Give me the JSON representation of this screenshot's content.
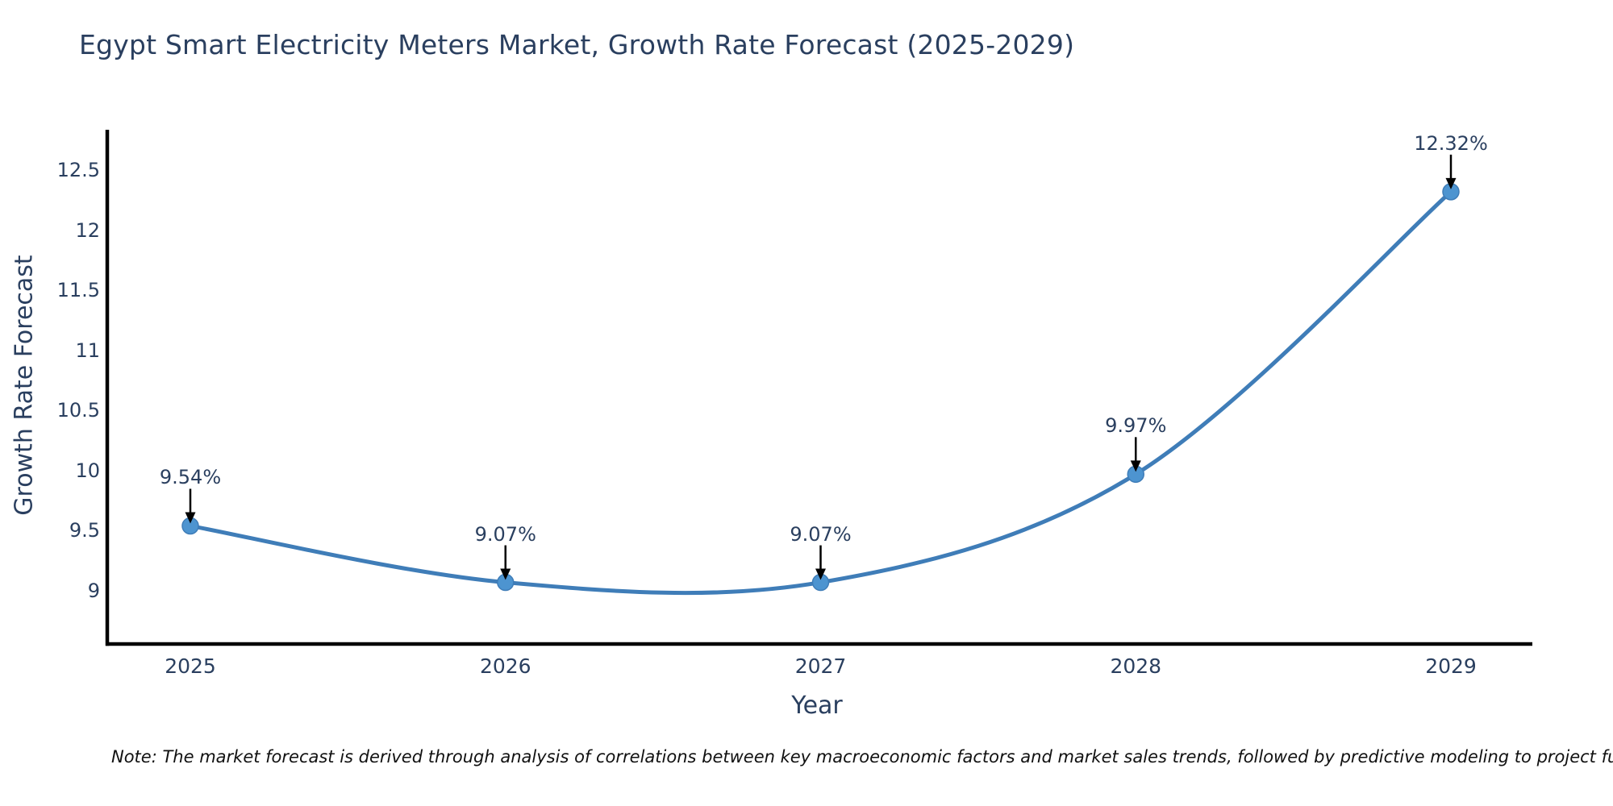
{
  "header": {
    "title": "Egypt Smart Electricity Meters Market, Growth Rate Forecast (2025-2029)",
    "title_color": "#2a3f5f"
  },
  "footnote": {
    "text": "Note: The market forecast is derived through analysis of correlations between key macroeconomic factors and market sales trends, followed by predictive modeling to project future sales"
  },
  "chart_data": {
    "type": "line",
    "title": "Egypt Smart Electricity Meters Market, Growth Rate Forecast (2025-2029)",
    "xlabel": "Year",
    "ylabel": "Growth Rate Forecast",
    "x": [
      2025,
      2026,
      2027,
      2028,
      2029
    ],
    "x_tick_labels": [
      "2025",
      "2026",
      "2027",
      "2028",
      "2029"
    ],
    "series": [
      {
        "name": "Growth Rate Forecast",
        "values": [
          9.54,
          9.07,
          9.07,
          9.97,
          12.32
        ]
      }
    ],
    "point_labels": [
      "9.54%",
      "9.07%",
      "9.07%",
      "9.97%",
      "12.32%"
    ],
    "y_ticks": [
      9,
      9.5,
      10,
      10.5,
      11,
      11.5,
      12,
      12.5
    ],
    "y_tick_labels": [
      "9",
      "9.5",
      "10",
      "10.5",
      "11",
      "11.5",
      "12",
      "12.5"
    ],
    "ylim": [
      8.56,
      12.84
    ],
    "line_shape": "spline",
    "grid": false,
    "legend": false,
    "colors": {
      "line": "#3f7db8",
      "marker": "#4d94d0",
      "axis": "#000000",
      "tick_text": "#2a3f5f",
      "annotation_text": "#2a3f5f",
      "arrow": "#000000"
    }
  }
}
